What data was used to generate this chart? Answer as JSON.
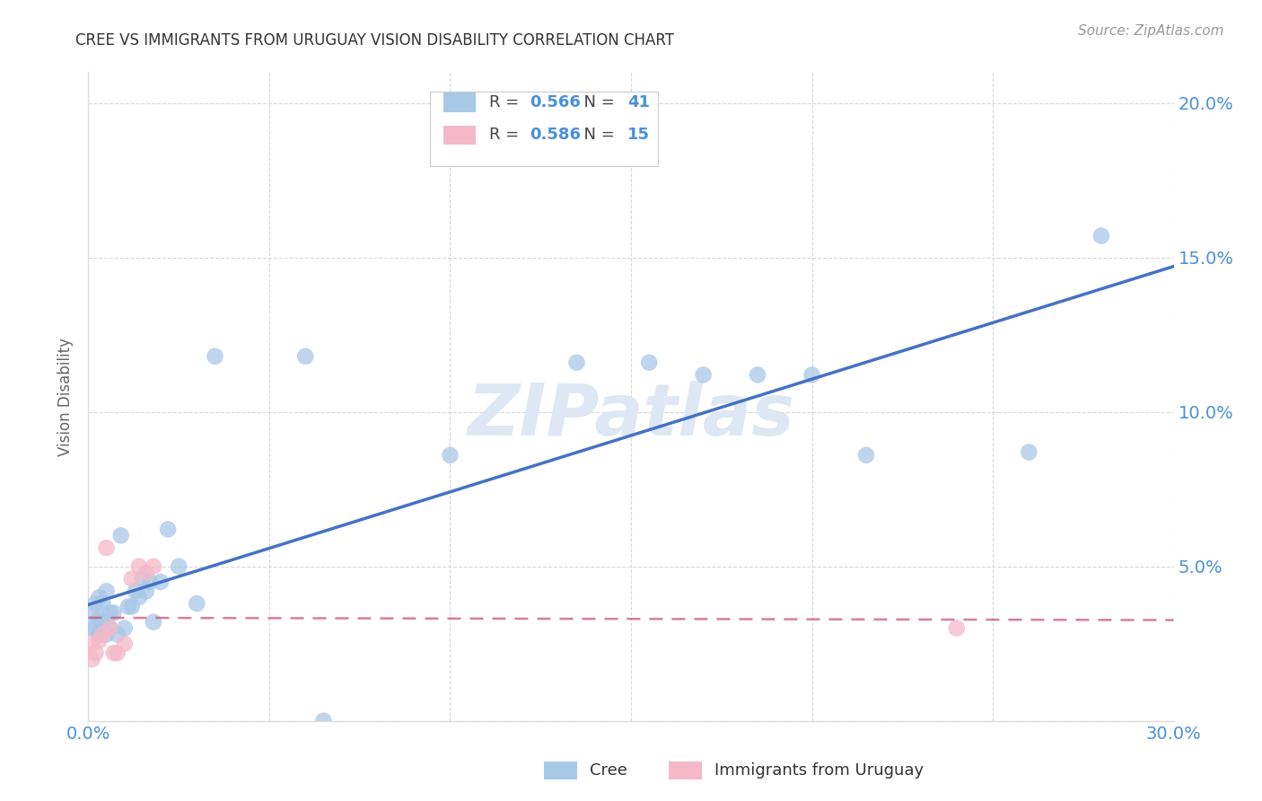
{
  "title": "CREE VS IMMIGRANTS FROM URUGUAY VISION DISABILITY CORRELATION CHART",
  "source": "Source: ZipAtlas.com",
  "ylabel": "Vision Disability",
  "xlim": [
    0.0,
    0.3
  ],
  "ylim": [
    0.0,
    0.21
  ],
  "xticks": [
    0.0,
    0.05,
    0.1,
    0.15,
    0.2,
    0.25,
    0.3
  ],
  "yticks": [
    0.0,
    0.05,
    0.1,
    0.15,
    0.2
  ],
  "cree_R": 0.566,
  "cree_N": 41,
  "uruguay_R": 0.586,
  "uruguay_N": 15,
  "cree_color": "#a8c8e8",
  "cree_line_color": "#4472c4",
  "uruguay_color": "#f4b8c8",
  "uruguay_line_color": "#c84870",
  "watermark": "ZIPatlas",
  "cree_x": [
    0.001,
    0.001,
    0.002,
    0.002,
    0.003,
    0.003,
    0.003,
    0.004,
    0.004,
    0.005,
    0.005,
    0.006,
    0.006,
    0.007,
    0.008,
    0.009,
    0.01,
    0.011,
    0.012,
    0.013,
    0.014,
    0.015,
    0.016,
    0.017,
    0.018,
    0.02,
    0.022,
    0.025,
    0.03,
    0.035,
    0.06,
    0.065,
    0.1,
    0.135,
    0.155,
    0.17,
    0.185,
    0.2,
    0.215,
    0.26,
    0.28
  ],
  "cree_y": [
    0.03,
    0.035,
    0.03,
    0.038,
    0.028,
    0.033,
    0.04,
    0.032,
    0.038,
    0.028,
    0.042,
    0.03,
    0.035,
    0.035,
    0.028,
    0.06,
    0.03,
    0.037,
    0.037,
    0.042,
    0.04,
    0.046,
    0.042,
    0.045,
    0.032,
    0.045,
    0.062,
    0.05,
    0.038,
    0.118,
    0.118,
    0.0,
    0.086,
    0.116,
    0.116,
    0.112,
    0.112,
    0.112,
    0.086,
    0.087,
    0.157
  ],
  "uruguay_x": [
    0.001,
    0.001,
    0.002,
    0.003,
    0.004,
    0.005,
    0.006,
    0.007,
    0.008,
    0.01,
    0.012,
    0.014,
    0.016,
    0.018,
    0.24
  ],
  "uruguay_y": [
    0.02,
    0.025,
    0.022,
    0.026,
    0.028,
    0.056,
    0.03,
    0.022,
    0.022,
    0.025,
    0.046,
    0.05,
    0.048,
    0.05,
    0.03
  ],
  "background_color": "#ffffff",
  "grid_color": "#d8d8d8",
  "title_color": "#333333",
  "axis_label_color": "#666666",
  "tick_label_color": "#4a90d9",
  "legend_R_color": "#4a90d9",
  "source_color": "#999999"
}
